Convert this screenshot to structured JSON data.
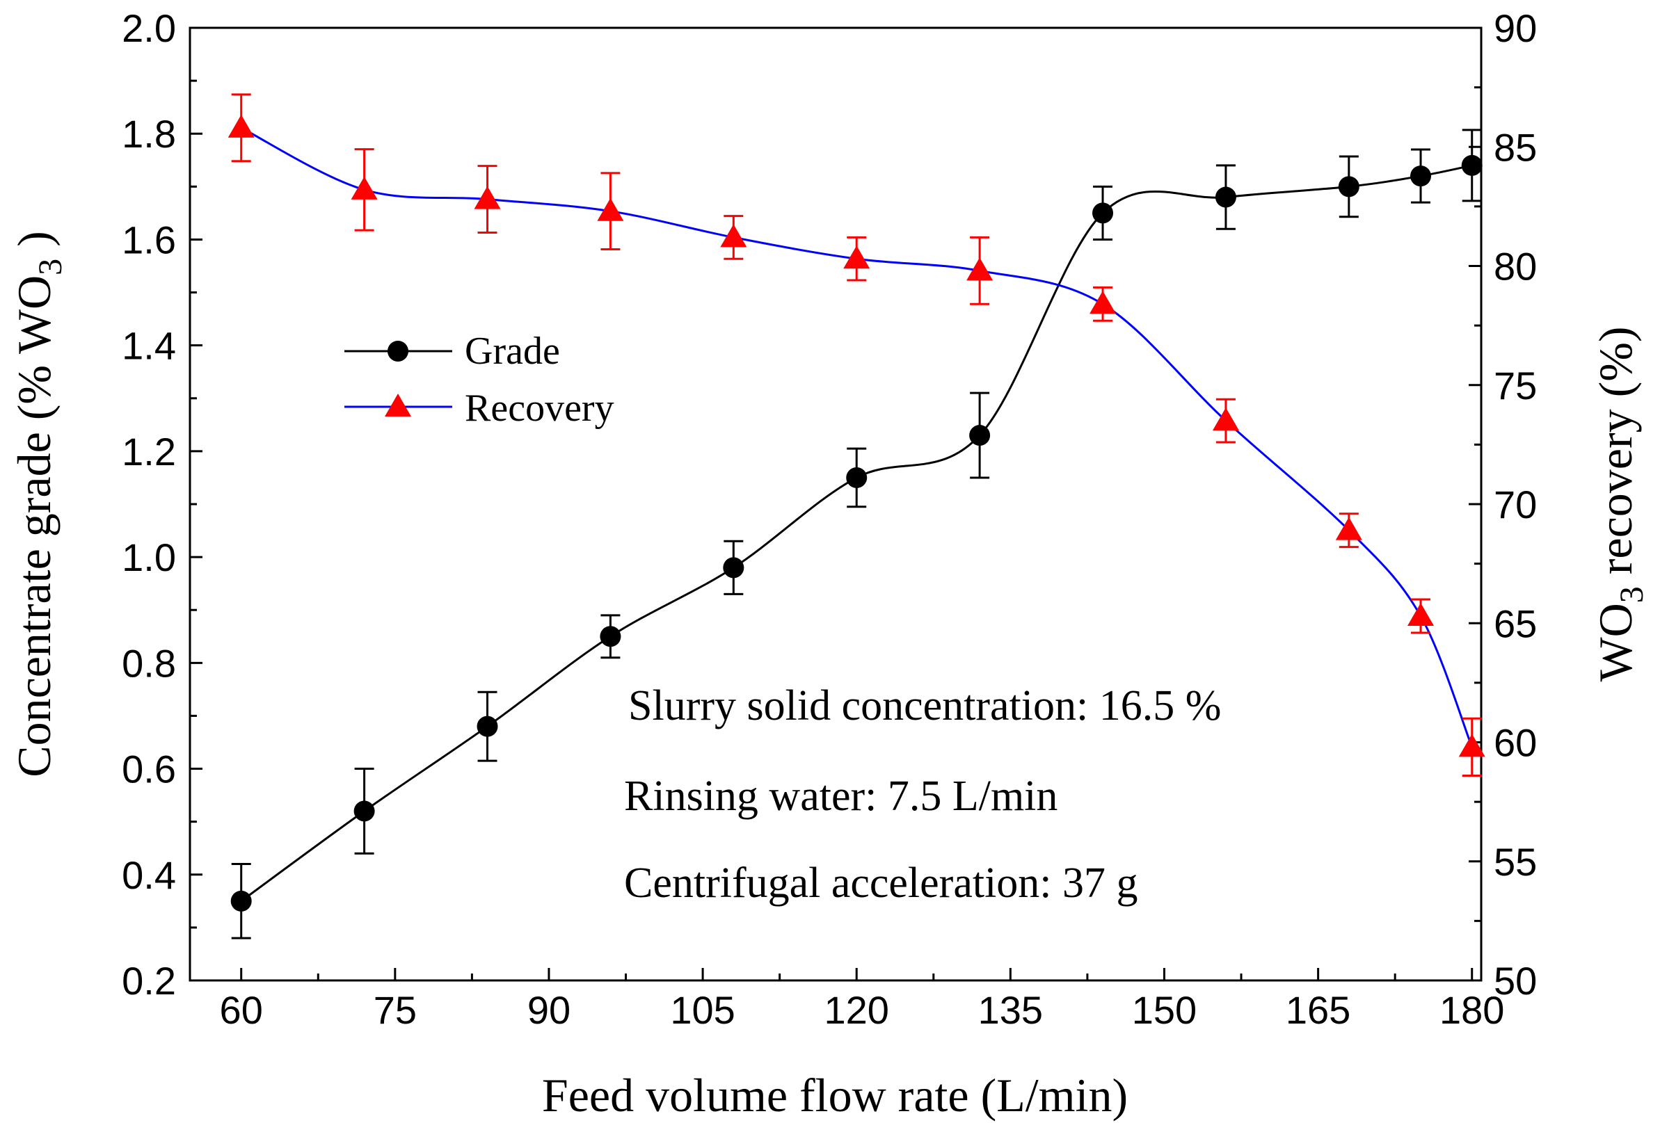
{
  "chart_data": {
    "type": "line",
    "title": "",
    "xlabel": "Feed volume flow rate (L/min)",
    "ylabel_left": {
      "main": "Concentrate grade (%  WO",
      "sub": "3",
      "end": " )"
    },
    "ylabel_right": {
      "main": "WO",
      "sub": "3",
      "end": " recovery (%)"
    },
    "x_ticks": [
      "60",
      "75",
      "90",
      "105",
      "120",
      "135",
      "150",
      "165",
      "180"
    ],
    "y_left_ticks": [
      "0.2",
      "0.4",
      "0.6",
      "0.8",
      "1.0",
      "1.2",
      "1.4",
      "1.6",
      "1.8",
      "2.0"
    ],
    "y_right_ticks": [
      "50",
      "55",
      "60",
      "65",
      "70",
      "75",
      "80",
      "85",
      "90"
    ],
    "xlim": [
      55,
      180.9
    ],
    "ylim_left": [
      0.2,
      2.0
    ],
    "ylim_right": [
      50,
      90
    ],
    "legend_position": "upper-left",
    "series": [
      {
        "name": "Grade",
        "axis": "left",
        "color": "#000000",
        "marker": "circle",
        "x": [
          60,
          72,
          84,
          96,
          108,
          120,
          132,
          144,
          156,
          168,
          175,
          180
        ],
        "y": [
          0.35,
          0.52,
          0.68,
          0.85,
          0.98,
          1.15,
          1.23,
          1.65,
          1.68,
          1.7,
          1.72,
          1.74
        ],
        "err": [
          0.07,
          0.08,
          0.065,
          0.04,
          0.05,
          0.055,
          0.08,
          0.05,
          0.06,
          0.057,
          0.05,
          0.067
        ]
      },
      {
        "name": "Recovery",
        "axis": "right",
        "color": "#0000ff",
        "marker_color": "#ff0000",
        "marker": "triangle",
        "x": [
          60,
          72,
          84,
          96,
          108,
          120,
          132,
          144,
          156,
          168,
          175,
          180
        ],
        "y": [
          85.8,
          83.2,
          82.8,
          82.3,
          81.2,
          80.3,
          79.8,
          78.4,
          73.5,
          68.9,
          65.3,
          59.8
        ],
        "err": [
          1.4,
          1.7,
          1.4,
          1.6,
          0.9,
          0.9,
          1.4,
          0.7,
          0.9,
          0.7,
          0.7,
          1.2
        ]
      }
    ],
    "annotations": [
      "Slurry solid concentration: 16.5 %",
      "Rinsing water: 7.5 L/min",
      "Centrifugal acceleration: 37 g"
    ]
  }
}
